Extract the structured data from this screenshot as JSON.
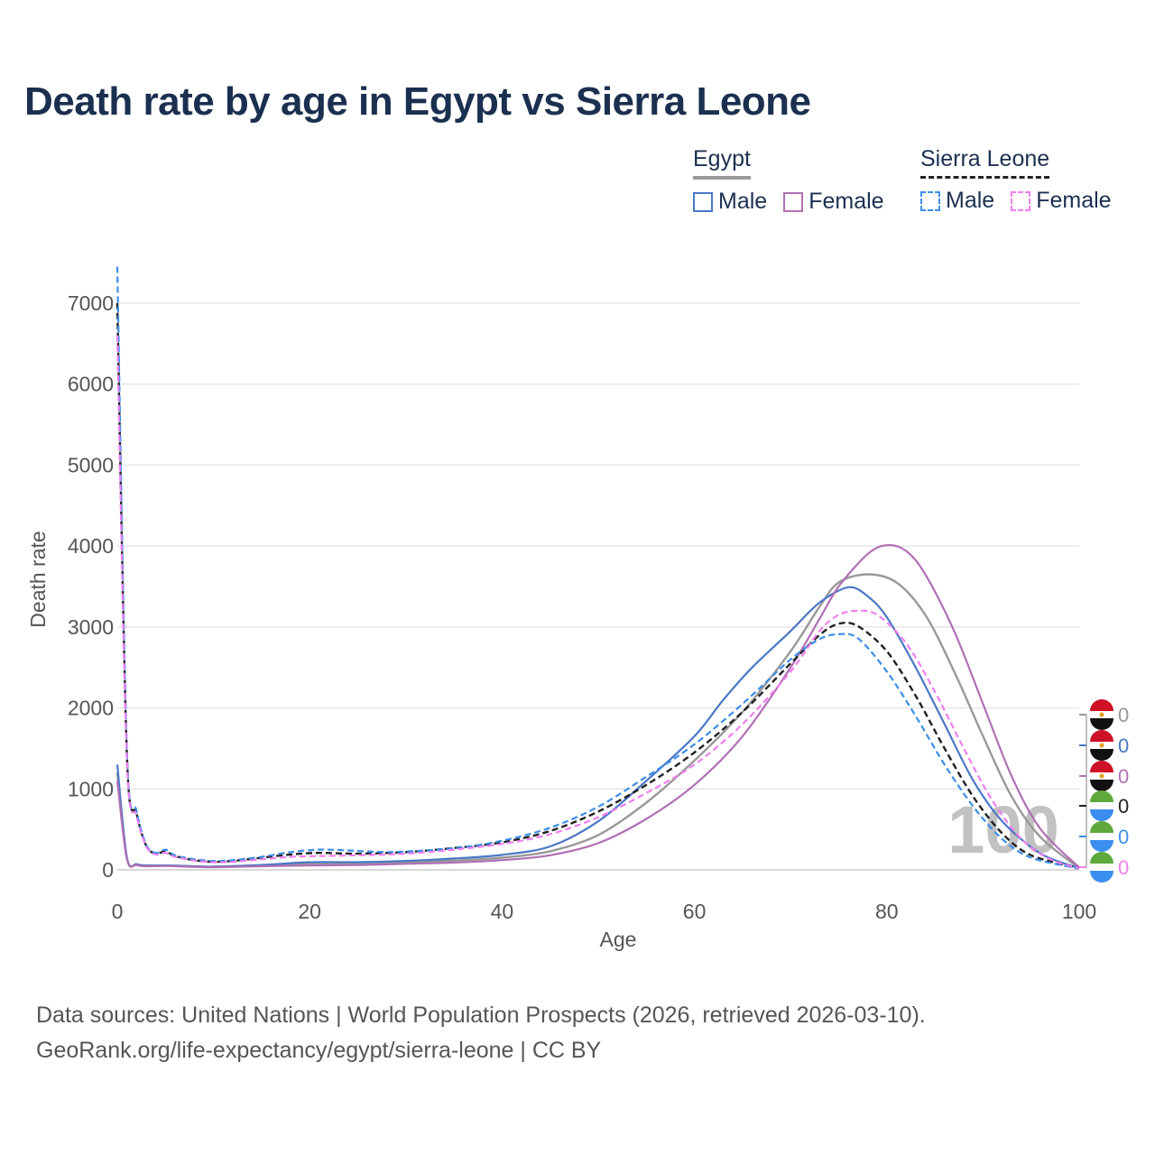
{
  "title": "Death rate by age in Egypt vs Sierra Leone",
  "legend": {
    "egypt": {
      "label": "Egypt",
      "male": "Male",
      "female": "Female"
    },
    "sierra_leone": {
      "label": "Sierra Leone",
      "male": "Male",
      "female": "Female"
    }
  },
  "colors": {
    "egypt_total": "#999999",
    "egypt_male": "#4a78c5",
    "egypt_female": "#b06fb5",
    "sl_total": "#222222",
    "sl_male": "#3b8ee8",
    "sl_female": "#f07ef0",
    "grid": "#e6e6e6",
    "axis_text": "#555555"
  },
  "icons": {
    "egypt_flag": "egypt-flag-icon",
    "sierra_leone_flag": "sierra-leone-flag-icon"
  },
  "slider_value": "100",
  "end_labels": [
    "0",
    "0",
    "0",
    "0",
    "0",
    "0"
  ],
  "footer": {
    "line1": "Data sources: United Nations | World Population Prospects (2026, retrieved 2026-03-10).",
    "line2": "GeoRank.org/life-expectancy/egypt/sierra-leone | CC BY"
  },
  "chart_data": {
    "type": "line",
    "title": "Death rate by age in Egypt vs Sierra Leone",
    "xlabel": "Age",
    "ylabel": "Death rate",
    "xlim": [
      0,
      100
    ],
    "ylim": [
      0,
      7400
    ],
    "xticks": [
      0,
      20,
      40,
      60,
      80,
      100
    ],
    "yticks": [
      0,
      1000,
      2000,
      3000,
      4000,
      5000,
      6000,
      7000
    ],
    "series": [
      {
        "name": "Egypt",
        "key": "egypt_total",
        "dash": false,
        "points": [
          [
            0,
            1200
          ],
          [
            1,
            140
          ],
          [
            2,
            65
          ],
          [
            3,
            50
          ],
          [
            5,
            52
          ],
          [
            8,
            42
          ],
          [
            10,
            38
          ],
          [
            15,
            55
          ],
          [
            20,
            75
          ],
          [
            25,
            80
          ],
          [
            30,
            95
          ],
          [
            35,
            115
          ],
          [
            40,
            150
          ],
          [
            45,
            230
          ],
          [
            50,
            430
          ],
          [
            55,
            830
          ],
          [
            60,
            1350
          ],
          [
            65,
            1950
          ],
          [
            70,
            2700
          ],
          [
            73,
            3250
          ],
          [
            75,
            3550
          ],
          [
            78,
            3650
          ],
          [
            81,
            3550
          ],
          [
            84,
            3150
          ],
          [
            87,
            2450
          ],
          [
            90,
            1650
          ],
          [
            93,
            900
          ],
          [
            96,
            400
          ],
          [
            100,
            20
          ]
        ]
      },
      {
        "name": "Egypt Male",
        "key": "egypt_male",
        "dash": false,
        "points": [
          [
            0,
            1300
          ],
          [
            1,
            150
          ],
          [
            2,
            70
          ],
          [
            3,
            55
          ],
          [
            5,
            55
          ],
          [
            8,
            45
          ],
          [
            10,
            40
          ],
          [
            15,
            60
          ],
          [
            20,
            95
          ],
          [
            25,
            95
          ],
          [
            30,
            110
          ],
          [
            35,
            140
          ],
          [
            40,
            185
          ],
          [
            45,
            290
          ],
          [
            50,
            600
          ],
          [
            55,
            1100
          ],
          [
            60,
            1650
          ],
          [
            63,
            2100
          ],
          [
            66,
            2500
          ],
          [
            70,
            2950
          ],
          [
            73,
            3300
          ],
          [
            76,
            3490
          ],
          [
            78,
            3380
          ],
          [
            80,
            3120
          ],
          [
            83,
            2500
          ],
          [
            86,
            1800
          ],
          [
            89,
            1100
          ],
          [
            92,
            600
          ],
          [
            96,
            200
          ],
          [
            100,
            20
          ]
        ]
      },
      {
        "name": "Egypt Female",
        "key": "egypt_female",
        "dash": false,
        "points": [
          [
            0,
            1100
          ],
          [
            1,
            130
          ],
          [
            2,
            60
          ],
          [
            3,
            45
          ],
          [
            5,
            48
          ],
          [
            8,
            38
          ],
          [
            10,
            32
          ],
          [
            15,
            45
          ],
          [
            20,
            55
          ],
          [
            25,
            60
          ],
          [
            30,
            75
          ],
          [
            35,
            90
          ],
          [
            40,
            120
          ],
          [
            45,
            180
          ],
          [
            50,
            330
          ],
          [
            55,
            630
          ],
          [
            60,
            1050
          ],
          [
            65,
            1650
          ],
          [
            70,
            2500
          ],
          [
            73,
            3100
          ],
          [
            75,
            3500
          ],
          [
            78,
            3900
          ],
          [
            80,
            4010
          ],
          [
            82,
            3940
          ],
          [
            84,
            3650
          ],
          [
            87,
            2950
          ],
          [
            90,
            2050
          ],
          [
            93,
            1150
          ],
          [
            96,
            500
          ],
          [
            100,
            30
          ]
        ]
      },
      {
        "name": "Sierra Leone",
        "key": "sl_total",
        "dash": true,
        "points": [
          [
            0,
            7000
          ],
          [
            1,
            1400
          ],
          [
            2,
            700
          ],
          [
            3,
            300
          ],
          [
            4,
            200
          ],
          [
            5,
            230
          ],
          [
            6,
            170
          ],
          [
            8,
            120
          ],
          [
            10,
            100
          ],
          [
            12,
            110
          ],
          [
            15,
            150
          ],
          [
            18,
            190
          ],
          [
            21,
            210
          ],
          [
            25,
            200
          ],
          [
            30,
            220
          ],
          [
            35,
            270
          ],
          [
            40,
            340
          ],
          [
            45,
            480
          ],
          [
            50,
            720
          ],
          [
            55,
            1050
          ],
          [
            60,
            1450
          ],
          [
            65,
            1950
          ],
          [
            70,
            2550
          ],
          [
            73,
            2900
          ],
          [
            75,
            3040
          ],
          [
            77,
            3010
          ],
          [
            80,
            2700
          ],
          [
            83,
            2150
          ],
          [
            86,
            1500
          ],
          [
            89,
            900
          ],
          [
            92,
            450
          ],
          [
            95,
            180
          ],
          [
            100,
            20
          ]
        ]
      },
      {
        "name": "Sierra Leone Male",
        "key": "sl_male",
        "dash": true,
        "points": [
          [
            0,
            7450
          ],
          [
            1,
            1450
          ],
          [
            2,
            730
          ],
          [
            3,
            310
          ],
          [
            4,
            210
          ],
          [
            5,
            250
          ],
          [
            6,
            180
          ],
          [
            8,
            130
          ],
          [
            10,
            110
          ],
          [
            12,
            120
          ],
          [
            15,
            160
          ],
          [
            18,
            220
          ],
          [
            21,
            250
          ],
          [
            24,
            240
          ],
          [
            28,
            220
          ],
          [
            32,
            240
          ],
          [
            36,
            280
          ],
          [
            40,
            360
          ],
          [
            45,
            520
          ],
          [
            50,
            780
          ],
          [
            55,
            1150
          ],
          [
            60,
            1550
          ],
          [
            65,
            2050
          ],
          [
            70,
            2600
          ],
          [
            73,
            2850
          ],
          [
            75,
            2910
          ],
          [
            77,
            2860
          ],
          [
            80,
            2450
          ],
          [
            83,
            1900
          ],
          [
            86,
            1300
          ],
          [
            89,
            780
          ],
          [
            92,
            380
          ],
          [
            95,
            150
          ],
          [
            100,
            15
          ]
        ]
      },
      {
        "name": "Sierra Leone Female",
        "key": "sl_female",
        "dash": true,
        "points": [
          [
            0,
            6600
          ],
          [
            1,
            1350
          ],
          [
            2,
            670
          ],
          [
            3,
            290
          ],
          [
            4,
            190
          ],
          [
            5,
            210
          ],
          [
            6,
            160
          ],
          [
            8,
            115
          ],
          [
            10,
            95
          ],
          [
            12,
            100
          ],
          [
            15,
            130
          ],
          [
            18,
            160
          ],
          [
            21,
            170
          ],
          [
            25,
            180
          ],
          [
            30,
            200
          ],
          [
            35,
            250
          ],
          [
            40,
            320
          ],
          [
            45,
            440
          ],
          [
            50,
            650
          ],
          [
            55,
            950
          ],
          [
            60,
            1300
          ],
          [
            65,
            1800
          ],
          [
            70,
            2450
          ],
          [
            73,
            2950
          ],
          [
            75,
            3150
          ],
          [
            77,
            3200
          ],
          [
            79,
            3150
          ],
          [
            82,
            2800
          ],
          [
            85,
            2200
          ],
          [
            88,
            1500
          ],
          [
            91,
            850
          ],
          [
            94,
            380
          ],
          [
            97,
            130
          ],
          [
            100,
            20
          ]
        ]
      }
    ]
  }
}
